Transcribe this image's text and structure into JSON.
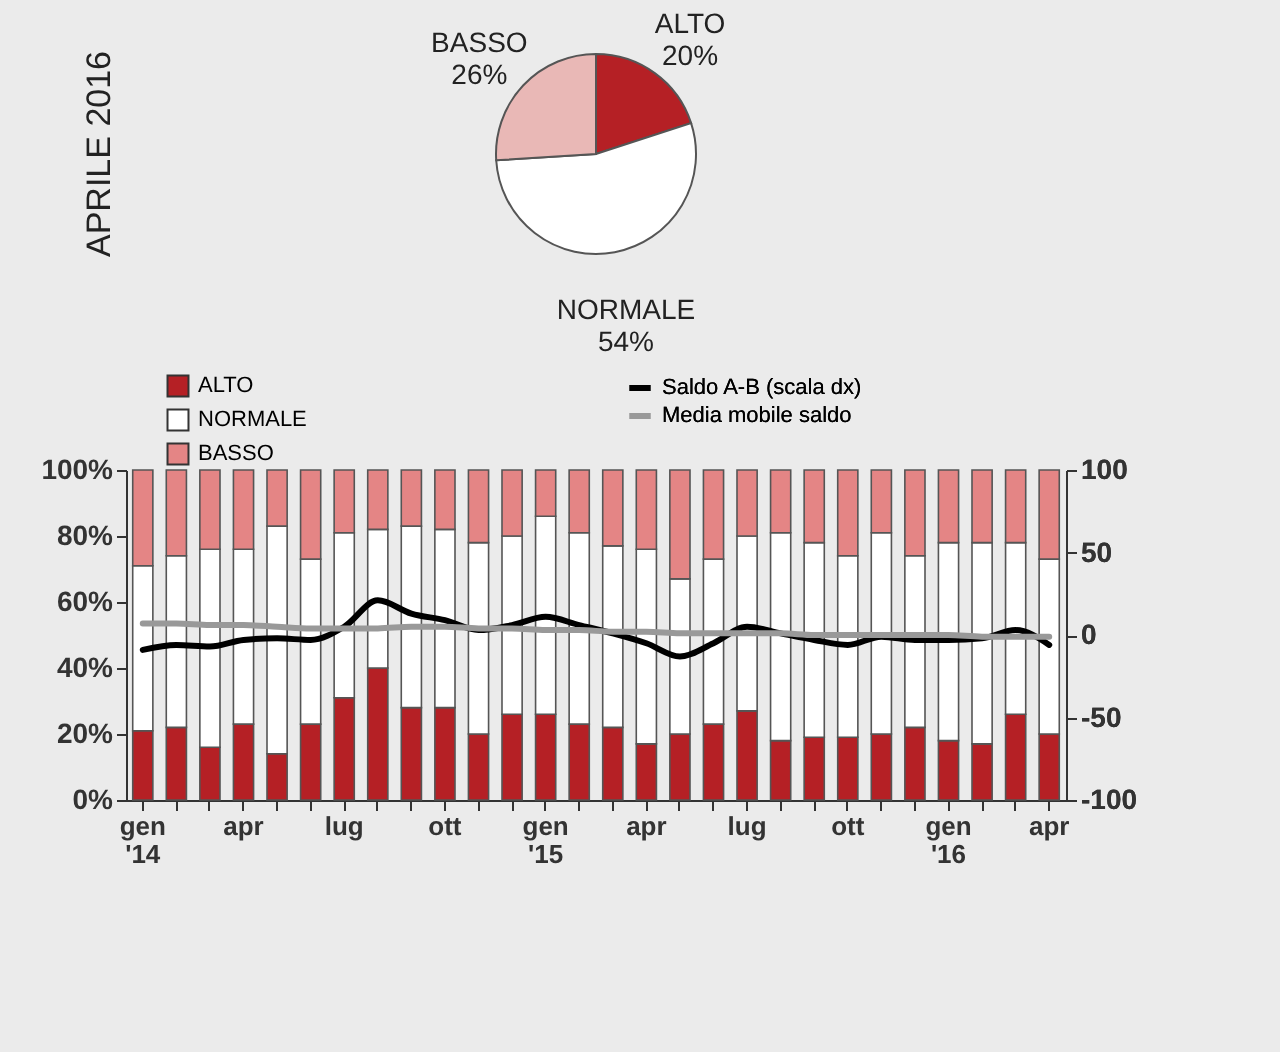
{
  "chart_data": [
    {
      "type": "pie",
      "title": "APRILE 2016",
      "categories": [
        "ALTO",
        "NORMALE",
        "BASSO"
      ],
      "values": [
        20,
        54,
        26
      ],
      "colors": [
        "#b52025",
        "#ffffff",
        "#e9b8b6"
      ],
      "value_labels": [
        "20%",
        "54%",
        "26%"
      ]
    },
    {
      "type": "bar",
      "stacked": true,
      "legend": "top",
      "categories": [
        "gen '14",
        null,
        null,
        "apr",
        null,
        null,
        "lug",
        null,
        null,
        "ott",
        null,
        null,
        "gen '15",
        null,
        null,
        "apr",
        null,
        null,
        "lug",
        null,
        null,
        "ott",
        null,
        null,
        "gen '16",
        null,
        null,
        "apr"
      ],
      "ylim": [
        0,
        100
      ],
      "yticks": [
        {
          "value": 0,
          "label": "0%"
        },
        {
          "value": 20,
          "label": "20%"
        },
        {
          "value": 40,
          "label": "40%"
        },
        {
          "value": 60,
          "label": "60%"
        },
        {
          "value": 80,
          "label": "80%"
        },
        {
          "value": 100,
          "label": "100%"
        }
      ],
      "y2lim": [
        -100,
        100
      ],
      "y2ticks": [
        -100,
        -50,
        0,
        50,
        100
      ],
      "series": [
        {
          "name": "ALTO",
          "color": "#b52025",
          "values": [
            21,
            22,
            16,
            23,
            14,
            23,
            31,
            40,
            28,
            28,
            20,
            26,
            26,
            23,
            22,
            17,
            20,
            23,
            27,
            18,
            19,
            19,
            20,
            22,
            18,
            17,
            26,
            20
          ]
        },
        {
          "name": "NORMALE",
          "color": "#ffffff",
          "values": [
            50,
            52,
            60,
            53,
            69,
            50,
            50,
            42,
            55,
            54,
            58,
            54,
            60,
            58,
            55,
            59,
            47,
            50,
            53,
            63,
            59,
            55,
            61,
            52,
            60,
            61,
            52,
            53
          ]
        },
        {
          "name": "BASSO",
          "color": "#e48585",
          "values": [
            29,
            26,
            24,
            24,
            17,
            27,
            19,
            18,
            17,
            18,
            22,
            20,
            14,
            19,
            23,
            24,
            33,
            27,
            20,
            19,
            22,
            26,
            19,
            26,
            22,
            22,
            22,
            27
          ]
        },
        {
          "name": "Saldo A-B (scala dx)",
          "type": "line",
          "axis": "y2",
          "color": "#000000",
          "values": [
            -9,
            -6,
            -7,
            -3,
            -2,
            -3,
            5,
            21,
            13,
            9,
            3,
            6,
            11,
            6,
            1,
            -5,
            -13,
            -5,
            5,
            1,
            -3,
            -6,
            -1,
            -3,
            -3,
            -2,
            3,
            -6
          ]
        },
        {
          "name": "Media mobile saldo",
          "type": "line",
          "axis": "y2",
          "color": "#999999",
          "values": [
            7,
            7,
            6,
            6,
            5,
            4,
            4,
            4,
            5,
            5,
            4,
            4,
            3,
            3,
            2,
            2,
            1,
            1,
            1,
            1,
            0,
            0,
            0,
            0,
            0,
            -1,
            -1,
            -1
          ]
        }
      ]
    }
  ]
}
